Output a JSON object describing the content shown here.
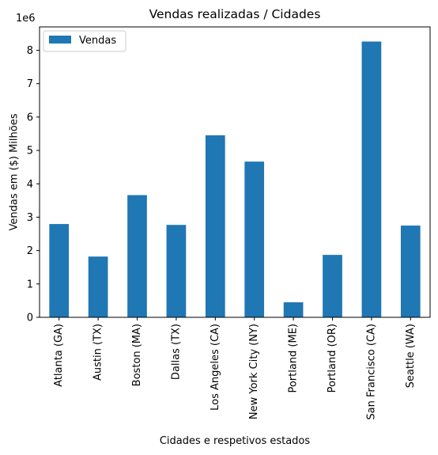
{
  "chart_data": {
    "type": "bar",
    "title": "Vendas realizadas / Cidades",
    "xlabel": "Cidades e respetivos estados",
    "ylabel": "Vendas em ($) Milhões",
    "y_offset_label": "1e6",
    "categories": [
      "Atlanta (GA)",
      "Austin (TX)",
      "Boston (MA)",
      "Dallas (TX)",
      "Los Angeles (CA)",
      "New York City (NY)",
      "Portland (ME)",
      "Portland (OR)",
      "San Francisco (CA)",
      "Seattle (WA)"
    ],
    "series": [
      {
        "name": "Vendas",
        "color": "#1f77b4",
        "values": [
          2795000,
          1820000,
          3661000,
          2768000,
          5452000,
          4665000,
          449700,
          1870000,
          8262000,
          2748000
        ]
      }
    ],
    "ylim": [
      0,
      8700000
    ],
    "yticks": [
      0,
      1000000,
      2000000,
      3000000,
      4000000,
      5000000,
      6000000,
      7000000,
      8000000
    ],
    "ytick_labels": [
      "0",
      "1",
      "2",
      "3",
      "4",
      "5",
      "6",
      "7",
      "8"
    ],
    "grid": false,
    "legend_position": "upper-left"
  }
}
